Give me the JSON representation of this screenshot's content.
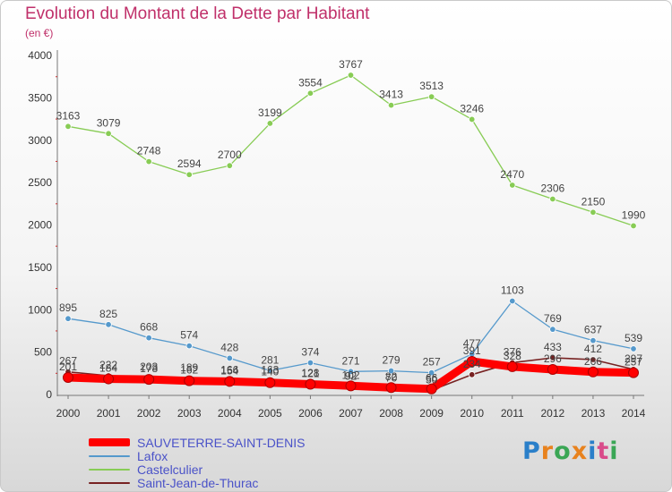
{
  "header": {
    "title": "Evolution du Montant de la Dette par Habitant",
    "subtitle": "(en €)"
  },
  "chart_data": {
    "type": "line",
    "title": "Evolution du Montant de la Dette par Habitant",
    "ylabel": "(en €)",
    "xlabel": "",
    "x": [
      "2000",
      "2001",
      "2002",
      "2003",
      "2004",
      "2005",
      "2006",
      "2007",
      "2008",
      "2009",
      "2010",
      "2011",
      "2012",
      "2013",
      "2014"
    ],
    "ylim": [
      0,
      4000
    ],
    "yticks": [
      0,
      500,
      1000,
      1500,
      2000,
      2500,
      3000,
      3500,
      4000
    ],
    "grid": false,
    "legend_position": "bottom-left",
    "series": [
      {
        "name": "SAUVETERRE-SAINT-DENIS",
        "color": "#ff0000",
        "values": [
          201,
          184,
          178,
          162,
          154,
          140,
          121,
          102,
          82,
          66,
          391,
          328,
          296,
          266,
          257
        ],
        "labels": [
          "201",
          "184",
          "178",
          "162",
          "154",
          "140",
          "121",
          "102",
          "82",
          "66",
          "391",
          "328",
          "296",
          "266",
          "257"
        ]
      },
      {
        "name": "Lafox",
        "color": "#5599cc",
        "values": [
          895,
          825,
          668,
          574,
          428,
          281,
          374,
          271,
          279,
          257,
          477,
          1103,
          769,
          637,
          539
        ],
        "labels": [
          "895",
          "825",
          "668",
          "574",
          "428",
          "281",
          "374",
          "271",
          "279",
          "257",
          "477",
          "1103",
          "769",
          "637",
          "539"
        ]
      },
      {
        "name": "Castelculier",
        "color": "#88cc55",
        "values": [
          3163,
          3079,
          2748,
          2594,
          2700,
          3199,
          3554,
          3767,
          3413,
          3513,
          3246,
          2470,
          2306,
          2150,
          1990
        ],
        "labels": [
          "3163",
          "3079",
          "2748",
          "2594",
          "2700",
          "3199",
          "3554",
          "3767",
          "3413",
          "3513",
          "3246",
          "2470",
          "2306",
          "2150",
          "1990"
        ]
      },
      {
        "name": "Saint-Jean-de-Thurac",
        "color": "#772222",
        "values": [
          267,
          222,
          203,
          189,
          166,
          163,
          128,
          92,
          70,
          50,
          234,
          376,
          433,
          412,
          297
        ],
        "labels": [
          "267",
          "222",
          "203",
          "189",
          "166",
          "163",
          "128",
          "92",
          "70",
          "50",
          "234",
          "376",
          "433",
          "412",
          "297"
        ]
      }
    ]
  },
  "logo": {
    "text": "Proxiti"
  }
}
